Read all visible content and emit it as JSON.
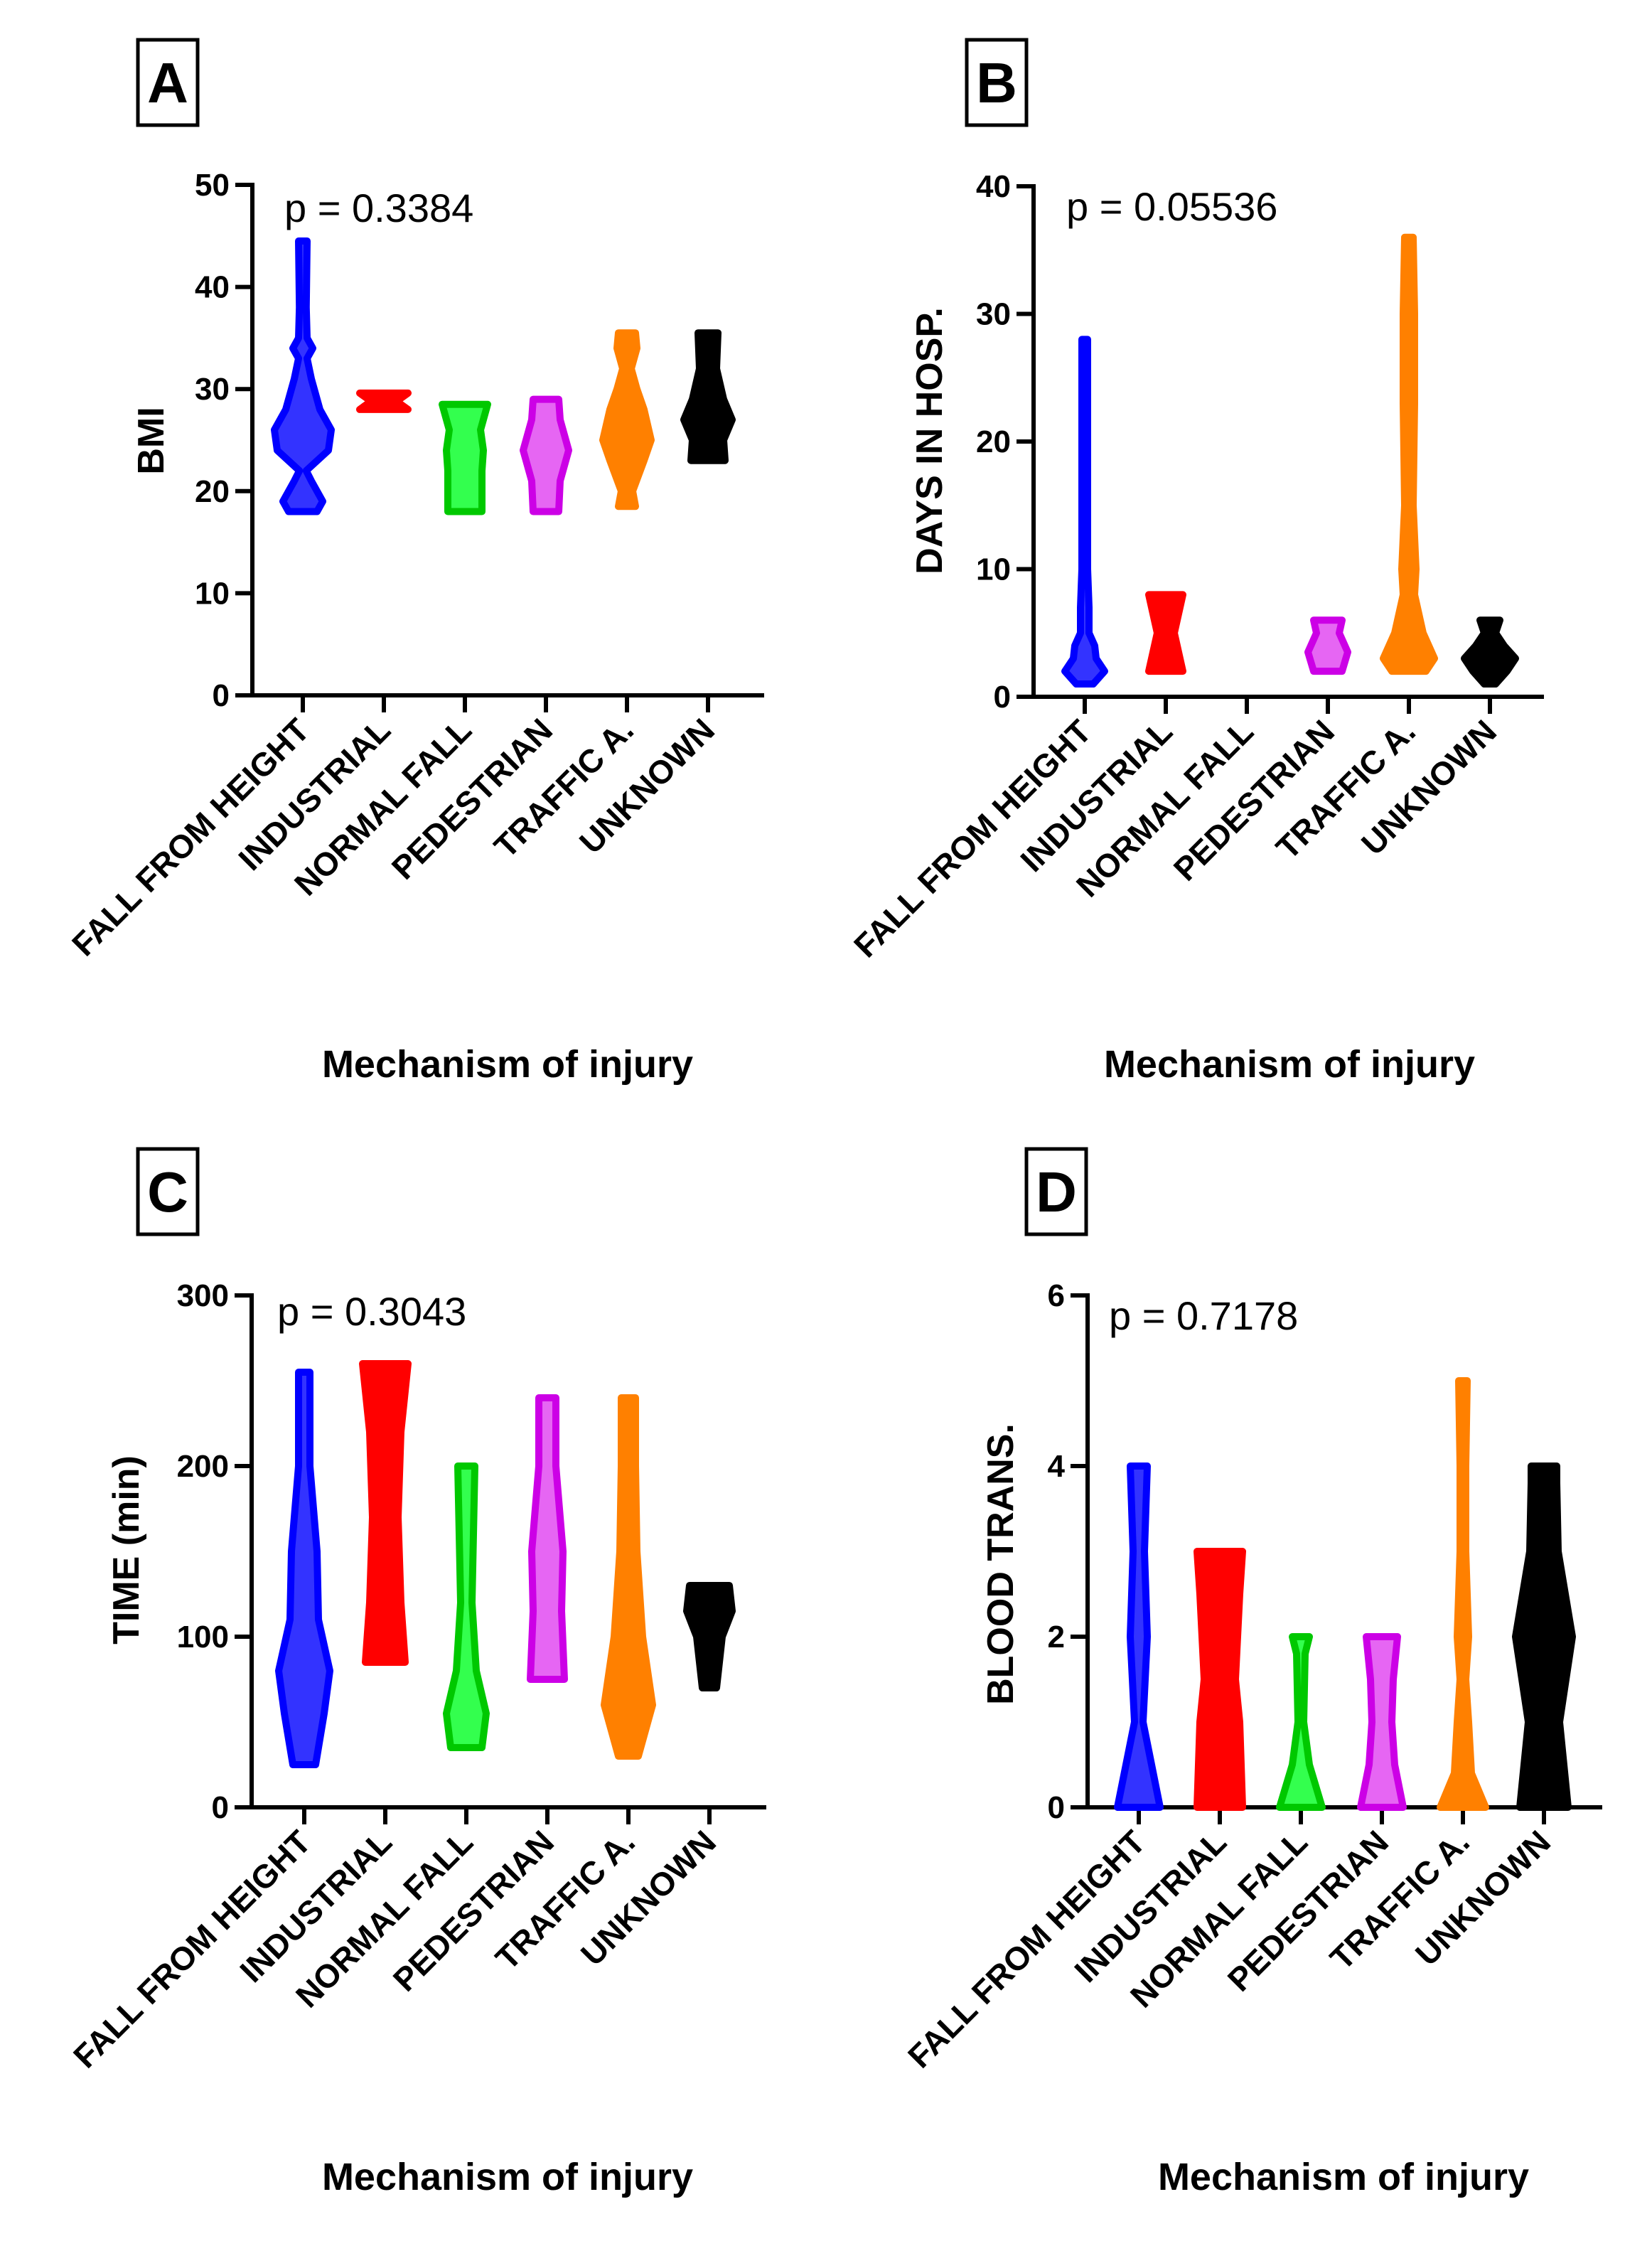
{
  "colors": {
    "fall_from_height": "#0000ff",
    "industrial": "#ff0000",
    "normal_fall": "#00c800",
    "normal_fall_fill": "#00ff22",
    "pedestrian": "#cc00e6",
    "pedestrian_fill": "#e040f0",
    "traffic": "#ff8000",
    "unknown": "#000000"
  },
  "chart_data": [
    {
      "type": "violin",
      "panel": "A",
      "ylabel": "BMI",
      "xlabel": "Mechanism of injury",
      "p_value": "p = 0.3384",
      "ylim": [
        0,
        50
      ],
      "yticks": [
        "0",
        "10",
        "20",
        "30",
        "40",
        "50"
      ],
      "ytick_values": [
        0,
        10,
        20,
        30,
        40,
        50
      ],
      "categories": [
        "FALL FROM HEIGHT",
        "INDUSTRIAL",
        "NORMAL FALL",
        "PEDESTRIAN",
        "TRAFFIC A.",
        "UNKNOWN"
      ],
      "series": [
        {
          "name": "FALL FROM HEIGHT",
          "profile": [
            [
              18,
              0.5
            ],
            [
              19,
              0.7
            ],
            [
              21,
              0.3
            ],
            [
              22,
              0.12
            ],
            [
              24,
              0.9
            ],
            [
              26,
              1.0
            ],
            [
              28,
              0.6
            ],
            [
              31,
              0.3
            ],
            [
              33,
              0.15
            ],
            [
              34,
              0.35
            ],
            [
              35,
              0.15
            ],
            [
              38,
              0.12
            ],
            [
              44.5,
              0.15
            ]
          ]
        },
        {
          "name": "INDUSTRIAL",
          "profile": [
            [
              28,
              0.85
            ],
            [
              28.8,
              0.45
            ],
            [
              29.6,
              0.85
            ]
          ]
        },
        {
          "name": "NORMAL FALL",
          "profile": [
            [
              18,
              0.6
            ],
            [
              22,
              0.6
            ],
            [
              24,
              0.65
            ],
            [
              26,
              0.55
            ],
            [
              28.5,
              0.8
            ]
          ]
        },
        {
          "name": "PEDESTRIAN",
          "profile": [
            [
              18,
              0.45
            ],
            [
              21,
              0.5
            ],
            [
              24,
              0.8
            ],
            [
              27,
              0.5
            ],
            [
              29,
              0.45
            ]
          ]
        },
        {
          "name": "TRAFFIC A.",
          "profile": [
            [
              18.5,
              0.3
            ],
            [
              20,
              0.2
            ],
            [
              23,
              0.6
            ],
            [
              25,
              0.85
            ],
            [
              28,
              0.6
            ],
            [
              30,
              0.35
            ],
            [
              32,
              0.15
            ],
            [
              34,
              0.35
            ],
            [
              35.5,
              0.3
            ]
          ]
        },
        {
          "name": "UNKNOWN",
          "profile": [
            [
              23,
              0.6
            ],
            [
              25,
              0.55
            ],
            [
              27,
              0.85
            ],
            [
              29,
              0.55
            ],
            [
              32,
              0.3
            ],
            [
              35.5,
              0.35
            ]
          ]
        }
      ]
    },
    {
      "type": "violin",
      "panel": "B",
      "ylabel": "DAYS IN HOSP.",
      "xlabel": "Mechanism of injury",
      "p_value": "p = 0.05536",
      "ylim": [
        0,
        40
      ],
      "yticks": [
        "0",
        "10",
        "20",
        "30",
        "40"
      ],
      "ytick_values": [
        0,
        10,
        20,
        30,
        40
      ],
      "categories": [
        "FALL FROM HEIGHT",
        "INDUSTRIAL",
        "NORMAL FALL",
        "PEDESTRIAN",
        "TRAFFIC A.",
        "UNKNOWN"
      ],
      "series": [
        {
          "name": "FALL FROM HEIGHT",
          "profile": [
            [
              1,
              0.3
            ],
            [
              2,
              0.7
            ],
            [
              3,
              0.4
            ],
            [
              4,
              0.35
            ],
            [
              5,
              0.15
            ],
            [
              7,
              0.15
            ],
            [
              10,
              0.1
            ],
            [
              28,
              0.1
            ]
          ]
        },
        {
          "name": "INDUSTRIAL",
          "profile": [
            [
              2,
              0.6
            ],
            [
              5,
              0.3
            ],
            [
              8,
              0.6
            ]
          ]
        },
        {
          "name": "NORMAL FALL",
          "profile": []
        },
        {
          "name": "PEDESTRIAN",
          "profile": [
            [
              2,
              0.5
            ],
            [
              3.5,
              0.7
            ],
            [
              5,
              0.4
            ],
            [
              6,
              0.5
            ]
          ]
        },
        {
          "name": "TRAFFIC A.",
          "profile": [
            [
              2,
              0.6
            ],
            [
              3,
              0.9
            ],
            [
              5,
              0.5
            ],
            [
              8,
              0.2
            ],
            [
              10,
              0.25
            ],
            [
              15,
              0.15
            ],
            [
              23,
              0.2
            ],
            [
              30,
              0.2
            ],
            [
              36,
              0.15
            ]
          ]
        },
        {
          "name": "UNKNOWN",
          "profile": [
            [
              1,
              0.2
            ],
            [
              2,
              0.6
            ],
            [
              3,
              0.9
            ],
            [
              4,
              0.5
            ],
            [
              5,
              0.2
            ],
            [
              6,
              0.35
            ]
          ]
        }
      ]
    },
    {
      "type": "violin",
      "panel": "C",
      "ylabel": "TIME (min)",
      "xlabel": "Mechanism of injury",
      "p_value": "p = 0.3043",
      "ylim": [
        0,
        300
      ],
      "yticks": [
        "0",
        "100",
        "200",
        "300"
      ],
      "ytick_values": [
        0,
        100,
        200,
        300
      ],
      "categories": [
        "FALL FROM HEIGHT",
        "INDUSTRIAL",
        "NORMAL FALL",
        "PEDESTRIAN",
        "TRAFFIC A.",
        "UNKNOWN"
      ],
      "series": [
        {
          "name": "FALL FROM HEIGHT",
          "profile": [
            [
              25,
              0.4
            ],
            [
              55,
              0.7
            ],
            [
              80,
              0.9
            ],
            [
              110,
              0.5
            ],
            [
              150,
              0.45
            ],
            [
              200,
              0.2
            ],
            [
              255,
              0.2
            ]
          ]
        },
        {
          "name": "INDUSTRIAL",
          "profile": [
            [
              85,
              0.7
            ],
            [
              120,
              0.55
            ],
            [
              170,
              0.45
            ],
            [
              220,
              0.55
            ],
            [
              260,
              0.8
            ]
          ]
        },
        {
          "name": "NORMAL FALL",
          "profile": [
            [
              35,
              0.55
            ],
            [
              55,
              0.7
            ],
            [
              80,
              0.35
            ],
            [
              120,
              0.2
            ],
            [
              200,
              0.3
            ]
          ]
        },
        {
          "name": "PEDESTRIAN",
          "profile": [
            [
              75,
              0.6
            ],
            [
              115,
              0.5
            ],
            [
              150,
              0.55
            ],
            [
              200,
              0.3
            ],
            [
              240,
              0.3
            ]
          ]
        },
        {
          "name": "TRAFFIC A.",
          "profile": [
            [
              30,
              0.35
            ],
            [
              60,
              0.85
            ],
            [
              100,
              0.5
            ],
            [
              150,
              0.3
            ],
            [
              200,
              0.25
            ],
            [
              240,
              0.25
            ]
          ]
        },
        {
          "name": "UNKNOWN",
          "profile": [
            [
              70,
              0.25
            ],
            [
              100,
              0.45
            ],
            [
              115,
              0.8
            ],
            [
              130,
              0.7
            ]
          ]
        }
      ]
    },
    {
      "type": "violin",
      "panel": "D",
      "ylabel": "BLOOD TRANS.",
      "xlabel": "Mechanism of injury",
      "p_value": "p = 0.7178",
      "ylim": [
        0,
        6
      ],
      "yticks": [
        "0",
        "2",
        "4",
        "6"
      ],
      "ytick_values": [
        0,
        2,
        4,
        6
      ],
      "categories": [
        "FALL FROM HEIGHT",
        "INDUSTRIAL",
        "NORMAL FALL",
        "PEDESTRIAN",
        "TRAFFIC A.",
        "UNKNOWN"
      ],
      "series": [
        {
          "name": "FALL FROM HEIGHT",
          "profile": [
            [
              0,
              0.75
            ],
            [
              0.5,
              0.45
            ],
            [
              1,
              0.15
            ],
            [
              2,
              0.3
            ],
            [
              3,
              0.2
            ],
            [
              4,
              0.3
            ]
          ]
        },
        {
          "name": "INDUSTRIAL",
          "profile": [
            [
              0,
              0.8
            ],
            [
              1,
              0.7
            ],
            [
              1.5,
              0.55
            ],
            [
              2.5,
              0.7
            ],
            [
              3,
              0.8
            ]
          ]
        },
        {
          "name": "NORMAL FALL",
          "profile": [
            [
              0,
              0.75
            ],
            [
              0.5,
              0.3
            ],
            [
              1,
              0.1
            ],
            [
              1.8,
              0.15
            ],
            [
              2,
              0.3
            ]
          ]
        },
        {
          "name": "PEDESTRIAN",
          "profile": [
            [
              0,
              0.75
            ],
            [
              0.5,
              0.45
            ],
            [
              1,
              0.35
            ],
            [
              1.5,
              0.4
            ],
            [
              2,
              0.55
            ]
          ]
        },
        {
          "name": "TRAFFIC A.",
          "profile": [
            [
              0,
              0.8
            ],
            [
              0.4,
              0.3
            ],
            [
              1,
              0.2
            ],
            [
              1.5,
              0.1
            ],
            [
              2,
              0.2
            ],
            [
              3,
              0.1
            ],
            [
              4,
              0.1
            ],
            [
              5,
              0.15
            ]
          ]
        },
        {
          "name": "UNKNOWN",
          "profile": [
            [
              0,
              0.85
            ],
            [
              1,
              0.55
            ],
            [
              2,
              1.0
            ],
            [
              3,
              0.5
            ],
            [
              3.8,
              0.45
            ],
            [
              4,
              0.45
            ]
          ]
        }
      ]
    }
  ]
}
